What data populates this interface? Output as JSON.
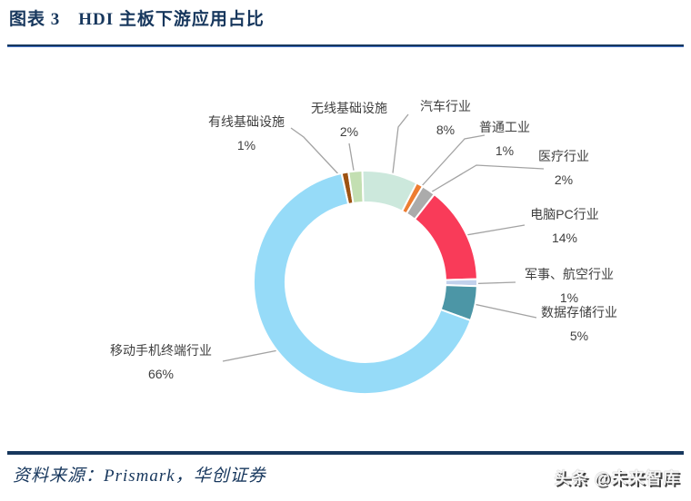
{
  "header": {
    "title": "图表 3　HDI 主板下游应用占比"
  },
  "footer": {
    "source": "资料来源：Prismark，华创证券",
    "watermark": "头条 @未来智库"
  },
  "colors": {
    "title_navy": "#17375D",
    "rule_navy": "#17375D",
    "rule_light_blue": "#4472C4",
    "label_text": "#3F3F3F",
    "leader_line": "#A3A3A3",
    "slice_gap": "#FFFFFF"
  },
  "chart_data": {
    "type": "pie",
    "subtype": "donut",
    "title": "HDI 主板下游应用占比",
    "legend_position": "none",
    "data_labels": "category name + percent, outside with leader lines",
    "start_angle_deg": -12.4,
    "direction": "clockwise",
    "categories": [
      "有线基础设施",
      "无线基础设施",
      "汽车行业",
      "普通工业",
      "医疗行业",
      "电脑PC行业",
      "军事、航空行业",
      "数据存储行业",
      "移动手机终端行业"
    ],
    "values": [
      1,
      2,
      8,
      1,
      2,
      14,
      1,
      5,
      66
    ],
    "slices": [
      {
        "id": "wired-infrastructure",
        "label": "有线基础设施",
        "value": 1,
        "pct_label": "1%",
        "color": "#9D5212"
      },
      {
        "id": "wireless-infrastructure",
        "label": "无线基础设施",
        "value": 2,
        "pct_label": "2%",
        "color": "#C3DFB2"
      },
      {
        "id": "automotive",
        "label": "汽车行业",
        "value": 8,
        "pct_label": "8%",
        "color": "#CCE8DC"
      },
      {
        "id": "general-industry",
        "label": "普通工业",
        "value": 1,
        "pct_label": "1%",
        "color": "#ED7D31"
      },
      {
        "id": "medical",
        "label": "医疗行业",
        "value": 2,
        "pct_label": "2%",
        "color": "#ABABAB"
      },
      {
        "id": "pc-computer",
        "label": "电脑PC行业",
        "value": 14,
        "pct_label": "14%",
        "color": "#F93B59"
      },
      {
        "id": "military-aviation",
        "label": "军事、航空行业",
        "value": 1,
        "pct_label": "1%",
        "color": "#C2D1EC"
      },
      {
        "id": "data-storage",
        "label": "数据存储行业",
        "value": 5,
        "pct_label": "5%",
        "color": "#4C96A6"
      },
      {
        "id": "mobile-phone-terminal",
        "label": "移动手机终端行业",
        "value": 66,
        "pct_label": "66%",
        "color": "#96DBF8"
      }
    ]
  }
}
